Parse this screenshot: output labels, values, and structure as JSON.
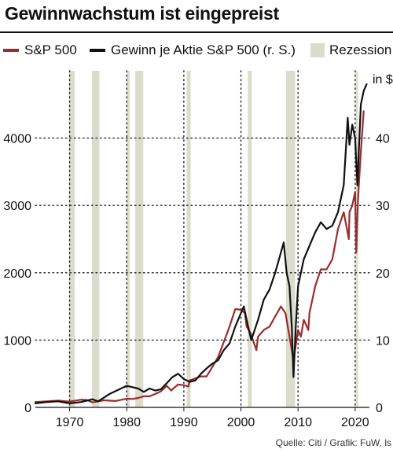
{
  "header": {
    "title": "Gewinnwachstum ist eingepreist"
  },
  "colors": {
    "sp500": "#9b2c2e",
    "eps": "#111111",
    "recession": "#dcdccd",
    "grid": "#222222"
  },
  "source": "Quelle: Citi / Grafik: FuW, ls",
  "chart_data": {
    "type": "line",
    "title": "Gewinnwachstum ist eingepreist",
    "legend": [
      "S&P 500",
      "Gewinn je Aktie S&P 500 (r. S.)",
      "Rezession"
    ],
    "legend_position": "top",
    "xlim": [
      1964,
      2022.5
    ],
    "x_ticks": [
      1970,
      1980,
      1990,
      2000,
      2010,
      2020
    ],
    "x_tick_labels": [
      "1970",
      "1980",
      "1990",
      "2000",
      "2010",
      "2020"
    ],
    "left_axis": {
      "ylim": [
        0,
        5000
      ],
      "ticks": [
        0,
        1000,
        2000,
        3000,
        4000
      ],
      "tick_labels": [
        "0",
        "1000",
        "2000",
        "3000",
        "4000"
      ]
    },
    "right_axis": {
      "label": "in $",
      "ylim": [
        0,
        50
      ],
      "ticks": [
        0,
        10,
        20,
        30,
        40
      ],
      "tick_labels": [
        "0",
        "10",
        "20",
        "30",
        "40"
      ]
    },
    "grid": "dotted",
    "recessions": [
      [
        1969.9,
        1970.9
      ],
      [
        1973.9,
        1975.2
      ],
      [
        1980.0,
        1980.5
      ],
      [
        1981.5,
        1982.9
      ],
      [
        1990.5,
        1991.2
      ],
      [
        2001.2,
        2001.9
      ],
      [
        2007.9,
        2009.5
      ],
      [
        2020.1,
        2020.5
      ]
    ],
    "series": [
      {
        "name": "S&P 500",
        "axis": "left",
        "x": [
          1964,
          1966,
          1968,
          1970,
          1972,
          1973,
          1974,
          1975,
          1976,
          1978,
          1980,
          1981,
          1982,
          1983,
          1984,
          1985,
          1986,
          1987,
          1987.8,
          1988,
          1989,
          1990,
          1990.8,
          1991,
          1992,
          1993,
          1994,
          1995,
          1996,
          1997,
          1998,
          1999,
          2000,
          2000.7,
          2001,
          2001.7,
          2002.7,
          2003,
          2004,
          2005,
          2006,
          2007,
          2007.8,
          2008,
          2008.8,
          2009.2,
          2010,
          2010.5,
          2011,
          2011.8,
          2012,
          2013,
          2014,
          2015,
          2016,
          2017,
          2018,
          2018.9,
          2019,
          2019.5,
          2020,
          2020.2,
          2020.5,
          2021,
          2021.5
        ],
        "values": [
          80,
          90,
          100,
          85,
          115,
          110,
          75,
          90,
          105,
          95,
          130,
          125,
          140,
          165,
          165,
          200,
          240,
          320,
          250,
          270,
          340,
          330,
          310,
          400,
          430,
          460,
          460,
          600,
          750,
          970,
          1200,
          1460,
          1450,
          1400,
          1200,
          1100,
          850,
          1050,
          1150,
          1200,
          1350,
          1500,
          1400,
          1300,
          900,
          700,
          1150,
          1050,
          1300,
          1150,
          1400,
          1800,
          2050,
          2050,
          2200,
          2650,
          2900,
          2500,
          2900,
          3000,
          3200,
          2300,
          3100,
          3800,
          4400
        ]
      },
      {
        "name": "Gewinn je Aktie S&P 500 (r. S.)",
        "axis": "right",
        "x": [
          1964,
          1966,
          1968,
          1970,
          1972,
          1974,
          1975,
          1977,
          1979,
          1980,
          1981,
          1982,
          1983,
          1984,
          1985,
          1986,
          1987,
          1988,
          1989,
          1990,
          1991,
          1992,
          1993,
          1994,
          1995,
          1996,
          1997,
          1998,
          1999,
          2000,
          2000.5,
          2001,
          2001.8,
          2002,
          2003,
          2004,
          2005,
          2006,
          2007,
          2007.5,
          2008,
          2008.5,
          2008.9,
          2009.2,
          2009.6,
          2010,
          2011,
          2012,
          2013,
          2014,
          2015,
          2016,
          2017,
          2018,
          2018.7,
          2019,
          2019.5,
          2020,
          2020.4,
          2020.8,
          2021,
          2021.5,
          2022
        ],
        "values": [
          0.6,
          0.8,
          0.9,
          0.6,
          0.8,
          1.2,
          0.9,
          2.0,
          2.8,
          3.2,
          3.0,
          2.8,
          2.3,
          2.8,
          2.5,
          2.7,
          3.6,
          4.5,
          5.0,
          4.2,
          3.8,
          4.0,
          5.0,
          5.8,
          6.5,
          7.0,
          8.5,
          9.5,
          12.0,
          14.0,
          15.0,
          13.0,
          10.0,
          10.5,
          13.0,
          16.0,
          17.5,
          20.0,
          23.0,
          24.5,
          20.0,
          18.0,
          12.0,
          4.5,
          12.0,
          18.0,
          22.0,
          24.0,
          26.0,
          27.5,
          26.5,
          27.0,
          29.0,
          33.0,
          43.0,
          39.0,
          42.0,
          40.0,
          33.0,
          41.0,
          45.0,
          47.0,
          48.0
        ]
      }
    ]
  }
}
